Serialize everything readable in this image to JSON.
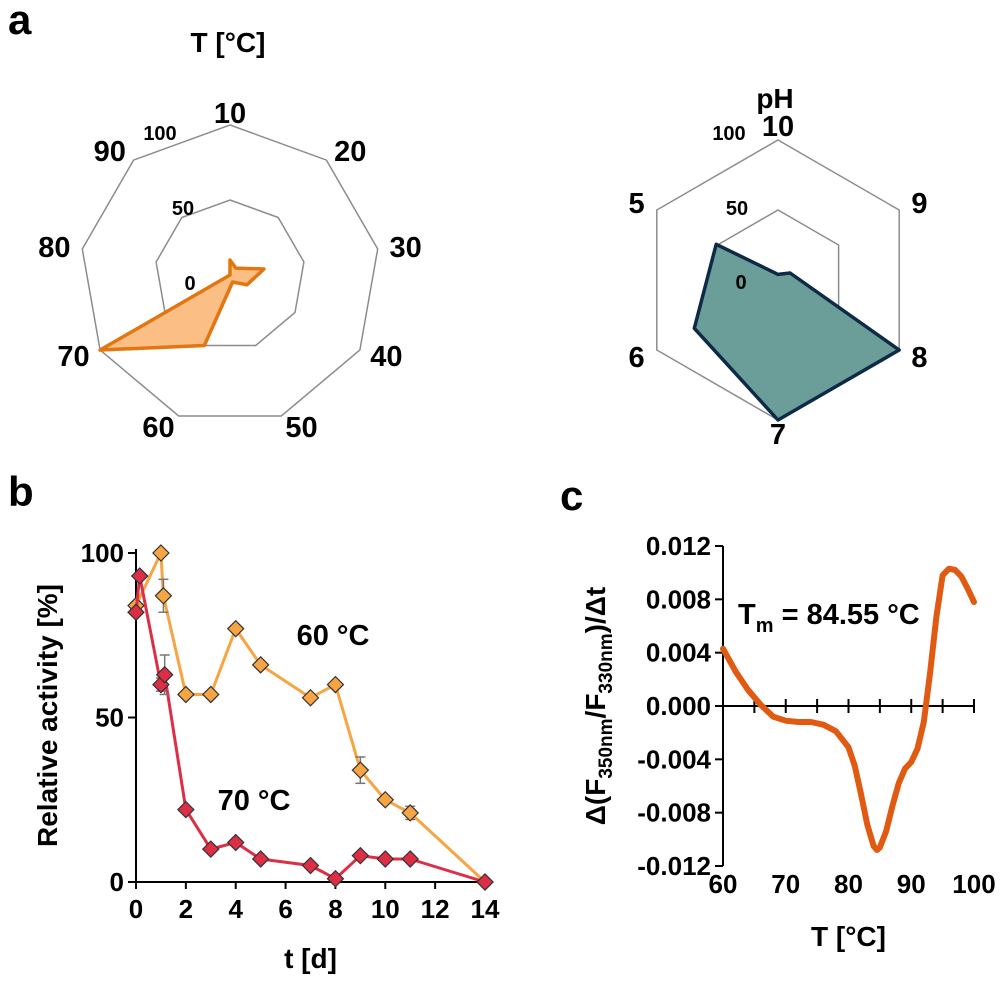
{
  "panels": {
    "a": "a",
    "b": "b",
    "c": "c"
  },
  "chart_data": [
    {
      "type": "radar",
      "title": "T [°C]",
      "categories": [
        "10",
        "20",
        "30",
        "40",
        "50",
        "60",
        "70",
        "80",
        "90"
      ],
      "ring_labels": [
        "100",
        "50",
        "0"
      ],
      "rlim": [
        0,
        100
      ],
      "values": [
        10,
        6,
        23,
        13,
        5,
        50,
        100,
        0,
        0
      ],
      "colors": {
        "fill": "#fbbf85",
        "stroke": "#e27611"
      }
    },
    {
      "type": "radar",
      "title": "pH",
      "categories": [
        "10",
        "9",
        "8",
        "7",
        "6",
        "5"
      ],
      "ring_labels": [
        "100",
        "50",
        "0"
      ],
      "rlim": [
        0,
        100
      ],
      "values": [
        4,
        10,
        100,
        100,
        69,
        51
      ],
      "colors": {
        "fill": "#6b9e98",
        "stroke": "#0e2a47"
      }
    },
    {
      "type": "line",
      "xlabel": "t [d]",
      "ylabel": "Relative activity [%]",
      "xlim": [
        0,
        14
      ],
      "ylim": [
        0,
        100
      ],
      "xticks": [
        "0",
        "2",
        "4",
        "6",
        "8",
        "10",
        "12",
        "14"
      ],
      "yticks": [
        "0",
        "50",
        "100"
      ],
      "series": [
        {
          "name": "60 °C",
          "color": "#f6a542",
          "x": [
            0,
            1,
            1.1,
            2,
            3,
            4,
            5,
            7,
            8,
            9,
            10,
            11,
            14
          ],
          "y": [
            84,
            100,
            87,
            57,
            57,
            77,
            66,
            56,
            60,
            34,
            25,
            21,
            0
          ],
          "err": [
            0,
            0,
            5,
            0,
            0,
            0,
            0,
            0,
            0,
            4,
            0,
            2,
            0
          ]
        },
        {
          "name": "70 °C",
          "color": "#dd2e45",
          "x": [
            0,
            0.15,
            1,
            1.15,
            2,
            3,
            4,
            5,
            7,
            8,
            9,
            10,
            11,
            14
          ],
          "y": [
            82,
            93,
            60,
            63,
            22,
            10,
            12,
            7,
            5,
            1,
            8,
            7,
            7,
            0
          ],
          "err": [
            0,
            0,
            2,
            6,
            0,
            0,
            0,
            0,
            0,
            0,
            0,
            0,
            0,
            0
          ]
        }
      ]
    },
    {
      "type": "line",
      "xlabel": "T [°C]",
      "ylabel": "Δ(F350nm/F330nm)/Δt",
      "xlim": [
        60,
        100
      ],
      "ylim": [
        -0.012,
        0.012
      ],
      "xticks": [
        "60",
        "70",
        "80",
        "90",
        "100"
      ],
      "yticks": [
        "0.012",
        "0.008",
        "0.004",
        "0.000",
        "-0.004",
        "-0.008",
        "-0.012"
      ],
      "annotation": {
        "main": "T",
        "sub": "m",
        "rest": " = 84.55 °C"
      },
      "series": [
        {
          "color": "#e15a12",
          "x": [
            60,
            62,
            64,
            66,
            68,
            70,
            72,
            74,
            76,
            78,
            80,
            81,
            82,
            83,
            84,
            84.55,
            85,
            86,
            87,
            88,
            89,
            90,
            91,
            92,
            93,
            94,
            95,
            96,
            97,
            98,
            99,
            100
          ],
          "y": [
            0.0043,
            0.0026,
            0.0012,
            0.0001,
            -0.0008,
            -0.0011,
            -0.0012,
            -0.0012,
            -0.0014,
            -0.0019,
            -0.0031,
            -0.0045,
            -0.0066,
            -0.0089,
            -0.0105,
            -0.0108,
            -0.0106,
            -0.0094,
            -0.0075,
            -0.0058,
            -0.0047,
            -0.0042,
            -0.0032,
            -0.0012,
            0.0025,
            0.0067,
            0.0098,
            0.0103,
            0.0102,
            0.0097,
            0.0088,
            0.0078
          ]
        }
      ]
    }
  ]
}
